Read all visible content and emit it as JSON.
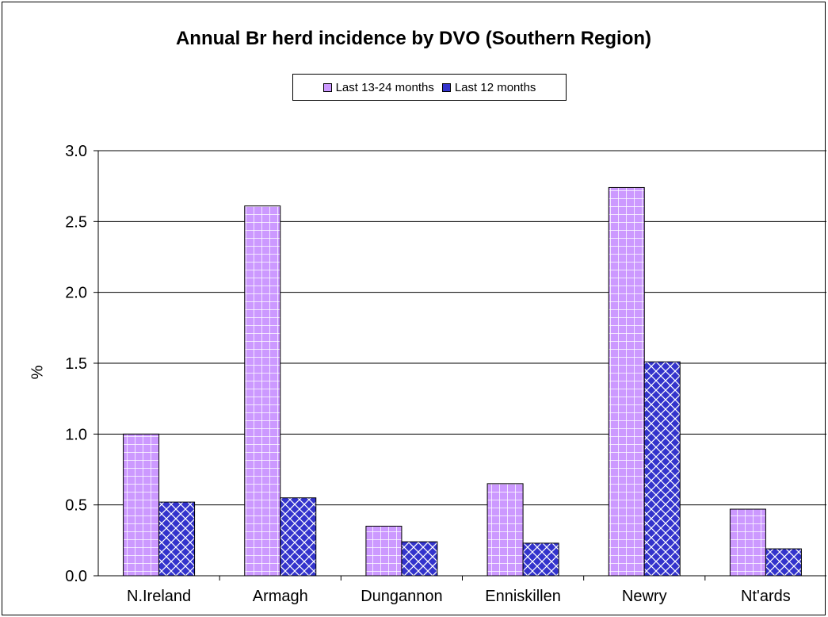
{
  "chart_data": {
    "type": "bar",
    "title": "Annual Br herd incidence by DVO (Southern Region)",
    "xlabel": "",
    "ylabel": "%",
    "ylim": [
      0,
      3
    ],
    "yticks": [
      "0.0",
      "0.5",
      "1.0",
      "1.5",
      "2.0",
      "2.5",
      "3.0"
    ],
    "categories": [
      "N.Ireland",
      "Armagh",
      "Dungannon",
      "Enniskillen",
      "Newry",
      "Nt'ards"
    ],
    "series": [
      {
        "name": "Last 13-24 months",
        "values": [
          1.0,
          2.61,
          0.35,
          0.65,
          2.74,
          0.47
        ]
      },
      {
        "name": "Last 12 months",
        "values": [
          0.52,
          0.55,
          0.24,
          0.23,
          1.51,
          0.19
        ]
      }
    ],
    "grid": true,
    "legend_position": "top"
  },
  "colors": {
    "series1": "#cc99ff",
    "series1_grid": "#ffffff",
    "series2": "#3333cc",
    "series2_hatch": "#ffffff",
    "gridline": "#000000"
  }
}
